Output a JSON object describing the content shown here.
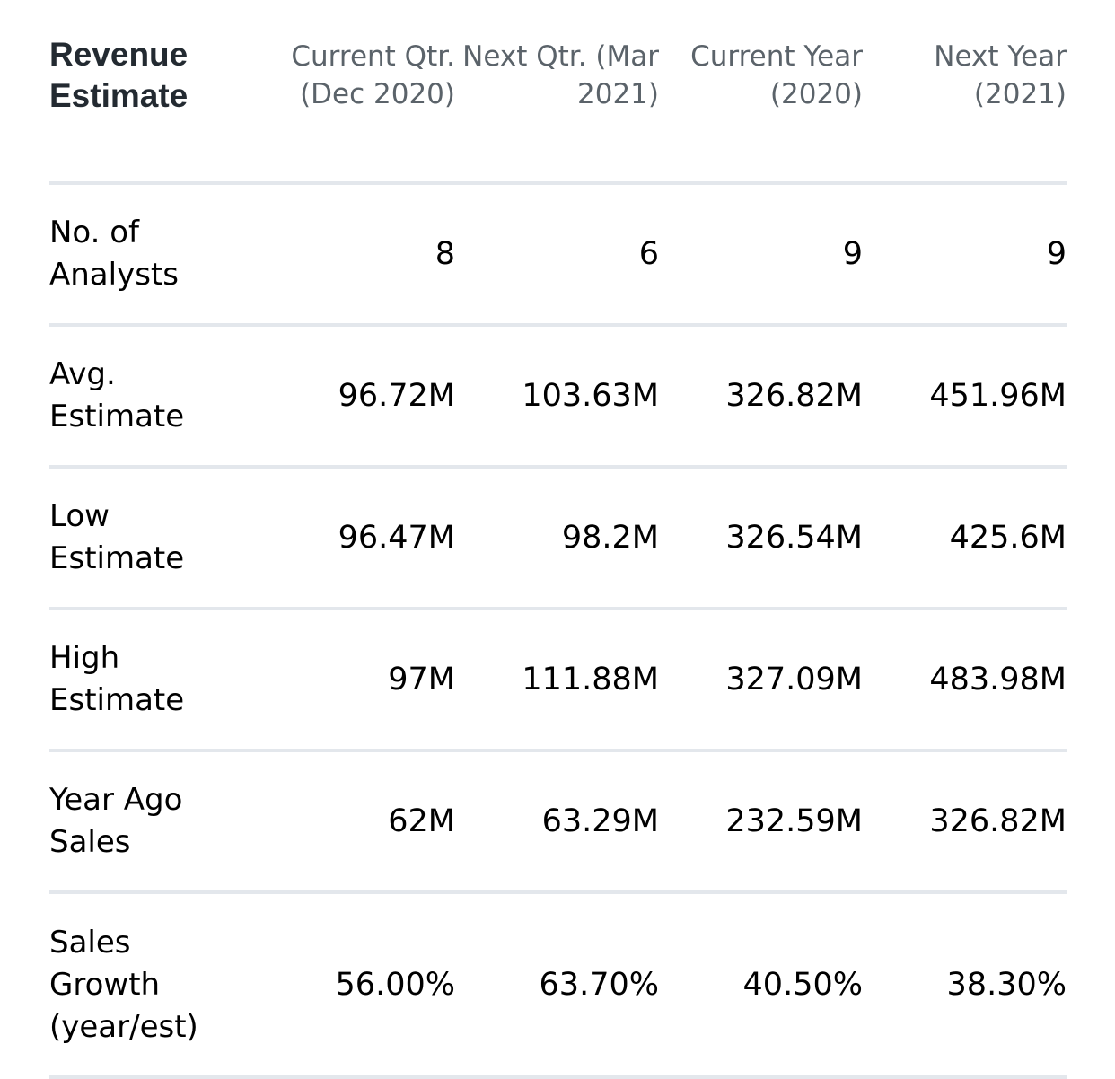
{
  "table": {
    "title": [
      "Revenue",
      "Estimate"
    ],
    "columns": [
      [
        "Current Qtr.",
        "(Dec 2020)"
      ],
      [
        "Next Qtr. (Mar",
        "2021)"
      ],
      [
        "Current Year",
        "(2020)"
      ],
      [
        "Next Year",
        "(2021)"
      ]
    ],
    "rows": [
      {
        "label": [
          "No. of",
          "Analysts"
        ],
        "values": [
          "8",
          "6",
          "9",
          "9"
        ]
      },
      {
        "label": [
          "Avg.",
          "Estimate"
        ],
        "values": [
          "96.72M",
          "103.63M",
          "326.82M",
          "451.96M"
        ]
      },
      {
        "label": [
          "Low",
          "Estimate"
        ],
        "values": [
          "96.47M",
          "98.2M",
          "326.54M",
          "425.6M"
        ]
      },
      {
        "label": [
          "High",
          "Estimate"
        ],
        "values": [
          "97M",
          "111.88M",
          "327.09M",
          "483.98M"
        ]
      },
      {
        "label": [
          "Year Ago",
          "Sales"
        ],
        "values": [
          "62M",
          "63.29M",
          "232.59M",
          "326.82M"
        ]
      },
      {
        "label": [
          "Sales",
          "Growth",
          "(year/est)"
        ],
        "values": [
          "56.00%",
          "63.70%",
          "40.50%",
          "38.30%"
        ]
      }
    ]
  }
}
